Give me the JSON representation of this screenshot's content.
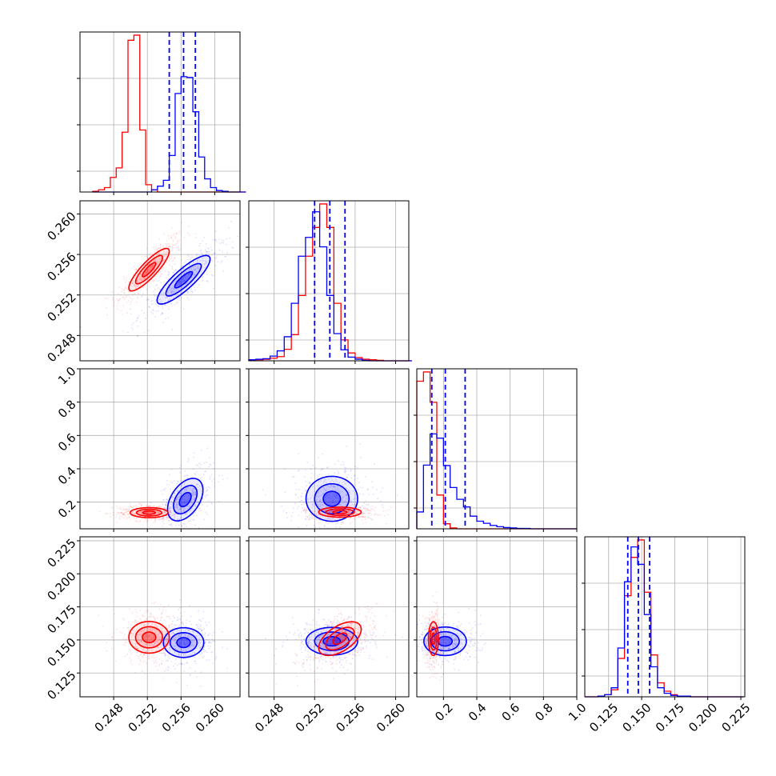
{
  "chart_data": {
    "type": "corner",
    "colors": {
      "series_a": "#0000ff",
      "series_b": "#ff0000"
    },
    "grid": true,
    "legend": "none",
    "parameters": [
      {
        "range": [
          0.244,
          0.263
        ],
        "ticks": [
          0.248,
          0.252,
          0.256,
          0.26
        ],
        "tick_labels": [
          "0.248",
          "0.252",
          "0.256",
          "0.260"
        ]
      },
      {
        "range": [
          0.2455,
          0.2613
        ],
        "ticks": [
          0.248,
          0.252,
          0.256,
          0.26
        ],
        "tick_labels": [
          "0.248",
          "0.252",
          "0.256",
          "0.260"
        ]
      },
      {
        "range": [
          0.04,
          1.0
        ],
        "ticks": [
          0.2,
          0.4,
          0.6,
          0.8,
          1.0
        ],
        "tick_labels": [
          "0.2",
          "0.4",
          "0.6",
          "0.8",
          "1.0"
        ]
      },
      {
        "range": [
          0.107,
          0.228
        ],
        "ticks": [
          0.125,
          0.15,
          0.175,
          0.2,
          0.225
        ],
        "tick_labels": [
          "0.125",
          "0.150",
          "0.175",
          "0.200",
          "0.225"
        ]
      }
    ],
    "marginals": [
      {
        "edges_start": 0.2455,
        "bin_width": 0.0007,
        "series_a": [
          0,
          0,
          0,
          0,
          0,
          0,
          0,
          0,
          0,
          0,
          3,
          8,
          16,
          50,
          135,
          158,
          157,
          110,
          48,
          18,
          6,
          2,
          1,
          0,
          0,
          0
        ],
        "series_b": [
          1,
          3,
          6,
          20,
          33,
          82,
          208,
          215,
          85,
          10,
          3,
          0,
          0,
          0,
          0,
          0,
          0,
          0,
          0,
          0,
          0,
          0,
          0,
          0,
          0,
          0
        ],
        "quantiles_a": [
          0.2546,
          0.2563,
          0.2577
        ]
      },
      {
        "edges_start": 0.2455,
        "bin_width": 0.0007,
        "series_a": [
          2,
          3,
          4,
          9,
          19,
          46,
          110,
          200,
          236,
          285,
          218,
          125,
          52,
          21,
          7,
          3,
          1,
          0,
          0,
          0,
          0,
          0,
          0
        ],
        "series_b": [
          1,
          2,
          3,
          5,
          8,
          22,
          50,
          125,
          200,
          255,
          300,
          255,
          110,
          40,
          15,
          6,
          3,
          2,
          1,
          0,
          0,
          0,
          0
        ],
        "quantiles_a": [
          0.252,
          0.2535,
          0.255
        ]
      },
      {
        "edges_start": 0.04,
        "bin_width": 0.04,
        "series_a": [
          40,
          151,
          225,
          215,
          150,
          98,
          70,
          52,
          30,
          18,
          13,
          8,
          5,
          3,
          2,
          1,
          1,
          0,
          0,
          0,
          0,
          0,
          0,
          0
        ],
        "series_b": [
          350,
          372,
          300,
          80,
          12,
          2,
          0,
          0,
          0,
          0,
          0,
          0,
          0,
          0,
          0,
          0,
          0,
          0,
          0,
          0,
          0,
          0,
          0,
          0
        ],
        "quantiles_a": [
          0.13,
          0.211,
          0.33
        ]
      },
      {
        "edges_start": 0.107,
        "bin_width": 0.005,
        "series_a": [
          0,
          0,
          1,
          3,
          13,
          70,
          165,
          215,
          190,
          118,
          43,
          13,
          5,
          2,
          1,
          1,
          0,
          0,
          0,
          0,
          0,
          0,
          0,
          0
        ],
        "series_b": [
          0,
          0,
          1,
          3,
          10,
          55,
          145,
          200,
          225,
          150,
          60,
          20,
          8,
          3,
          1,
          1,
          0,
          0,
          0,
          0,
          0,
          0,
          0,
          0
        ],
        "quantiles_a": [
          0.1395,
          0.1475,
          0.156
        ]
      }
    ],
    "joint": [
      {
        "x": 0,
        "y": 1,
        "a": {
          "mean": [
            0.2563,
            0.2535
          ],
          "sd": [
            0.0021,
            0.0016
          ],
          "rho": 0.85
        },
        "b": {
          "mean": [
            0.2522,
            0.2545
          ],
          "sd": [
            0.0016,
            0.0014
          ],
          "rho": 0.86
        }
      },
      {
        "x": 0,
        "y": 2,
        "a": {
          "mean": [
            0.2565,
            0.215
          ],
          "sd": [
            0.0014,
            0.085
          ],
          "rho": 0.45
        },
        "b": {
          "mean": [
            0.2522,
            0.137
          ],
          "sd": [
            0.0015,
            0.02
          ],
          "rho": 0.0
        }
      },
      {
        "x": 1,
        "y": 2,
        "a": {
          "mean": [
            0.2537,
            0.22
          ],
          "sd": [
            0.0017,
            0.09
          ],
          "rho": 0.0
        },
        "b": {
          "mean": [
            0.2545,
            0.14
          ],
          "sd": [
            0.0014,
            0.02
          ],
          "rho": 0.0
        }
      },
      {
        "x": 0,
        "y": 3,
        "a": {
          "mean": [
            0.2563,
            0.148
          ],
          "sd": [
            0.0016,
            0.0075
          ],
          "rho": 0.0
        },
        "b": {
          "mean": [
            0.2522,
            0.152
          ],
          "sd": [
            0.0016,
            0.008
          ],
          "rho": 0.0
        }
      },
      {
        "x": 1,
        "y": 3,
        "a": {
          "mean": [
            0.2537,
            0.149
          ],
          "sd": [
            0.0017,
            0.007
          ],
          "rho": 0.0
        },
        "b": {
          "mean": [
            0.2545,
            0.151
          ],
          "sd": [
            0.0014,
            0.0085
          ],
          "rho": 0.55
        }
      },
      {
        "x": 2,
        "y": 3,
        "a": {
          "mean": [
            0.21,
            0.149
          ],
          "sd": [
            0.085,
            0.0072
          ],
          "rho": 0.0
        },
        "b": {
          "mean": [
            0.14,
            0.151
          ],
          "sd": [
            0.02,
            0.0085
          ],
          "rho": 0.0
        }
      }
    ],
    "contour_levels_sigma": [
      0.5,
      1.0,
      1.5
    ]
  }
}
